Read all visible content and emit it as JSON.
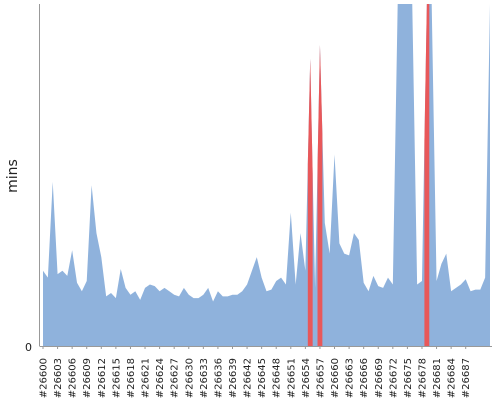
{
  "chart_data": {
    "type": "area",
    "title": "",
    "xlabel": "",
    "ylabel": "mins",
    "y_ticks": [
      "0"
    ],
    "ylim": [
      0,
      100
    ],
    "grid": false,
    "colors": {
      "normal": "#8fb2dc",
      "highlight": "#e8585a",
      "axis": "#999999"
    },
    "x_tick_labels": [
      "#26600",
      "#26603",
      "#26606",
      "#26609",
      "#26612",
      "#26615",
      "#26618",
      "#26621",
      "#26624",
      "#26627",
      "#26630",
      "#26633",
      "#26636",
      "#26639",
      "#26642",
      "#26645",
      "#26648",
      "#26651",
      "#26654",
      "#26657",
      "#26660",
      "#26663",
      "#26666",
      "#26669",
      "#26672",
      "#26675",
      "#26678",
      "#26681",
      "#26684",
      "#26687"
    ],
    "x_start": 26600,
    "values": [
      22.0,
      20.0,
      48.0,
      21.0,
      22.0,
      20.5,
      28.0,
      18.5,
      16.0,
      19.0,
      47.0,
      33.0,
      26.0,
      14.5,
      15.5,
      14.0,
      22.5,
      17.0,
      15.0,
      16.0,
      13.5,
      17.0,
      18.0,
      17.5,
      16.0,
      17.0,
      16.0,
      15.0,
      14.5,
      17.0,
      15.0,
      14.0,
      14.0,
      15.0,
      17.0,
      13.0,
      16.0,
      14.5,
      14.5,
      15.0,
      15.0,
      16.0,
      18.0,
      22.0,
      26.0,
      20.0,
      16.0,
      16.5,
      19.0,
      20.0,
      18.0,
      39.0,
      18.0,
      33.0,
      22.0,
      84.0,
      17.0,
      88.0,
      36.0,
      27.0,
      56.0,
      30.0,
      27.0,
      26.5,
      33.0,
      31.0,
      18.5,
      16.0,
      20.5,
      17.5,
      17.0,
      20.0,
      18.0,
      101.0,
      101.0,
      101.0,
      101.0,
      18.0,
      19.0,
      101.0,
      101.0,
      19.0,
      24.0,
      27.0,
      16.0,
      17.0,
      18.0,
      19.5,
      16.0,
      16.5,
      16.5,
      20.0,
      101.0
    ],
    "highlighted_x": [
      26655,
      26657,
      26679
    ]
  }
}
